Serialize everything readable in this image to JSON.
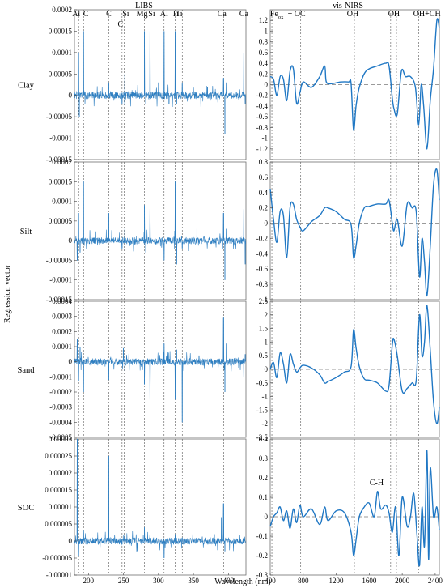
{
  "chart_data": {
    "type": "line",
    "column_titles": [
      "LIBS",
      "vis-NIRS"
    ],
    "xlabel": "Wavelength (nm)",
    "ylabel": "Regression vector",
    "rows": [
      "Clay",
      "Silt",
      "Sand",
      "SOC"
    ],
    "libs": {
      "xlim": [
        180,
        425
      ],
      "xticks": [
        200,
        250,
        300,
        350,
        400
      ],
      "element_lines": [
        {
          "label": "Al",
          "x": 186
        },
        {
          "label": "C",
          "x": 193
        },
        {
          "label": "C",
          "x": 229
        },
        {
          "label": "C",
          "x": 248
        },
        {
          "label": "Si",
          "x": 251
        },
        {
          "label": "Mg",
          "x": 280
        },
        {
          "label": "Si",
          "x": 288
        },
        {
          "label": "Al",
          "x": 308
        },
        {
          "label": "Ti",
          "x": 324
        },
        {
          "label": "Ti",
          "x": 334
        },
        {
          "label": "Ca",
          "x": 393
        },
        {
          "label": "Ca",
          "x": 422
        }
      ],
      "panels": [
        {
          "row": "Clay",
          "ylim": [
            -0.00015,
            0.0002
          ],
          "yticks": [
            -0.00015,
            -0.0001,
            -5e-05,
            0,
            5e-05,
            0.0001,
            0.00015,
            0.0002
          ],
          "ytick_labels": [
            "-0.00015",
            "-0.0001",
            "-0.00005",
            "0",
            "0.00005",
            "0.0001",
            "0.00015",
            "0.0002"
          ],
          "peaks": [
            [
              186,
              0.0001
            ],
            [
              187,
              -5e-05
            ],
            [
              193,
              0.00015
            ],
            [
              229,
              3e-05
            ],
            [
              248,
              -2e-05
            ],
            [
              252,
              5e-05
            ],
            [
              280,
              0.00015
            ],
            [
              282,
              -2e-05
            ],
            [
              288,
              0.00015
            ],
            [
              300,
              3e-05
            ],
            [
              308,
              0.00015
            ],
            [
              315,
              -2e-05
            ],
            [
              324,
              0.00015
            ],
            [
              326,
              -2e-05
            ],
            [
              334,
              3e-05
            ],
            [
              370,
              2e-05
            ],
            [
              393,
              4e-05
            ],
            [
              395,
              -9e-05
            ],
            [
              397,
              3e-05
            ],
            [
              422,
              0.0001
            ],
            [
              424,
              -2e-05
            ]
          ]
        },
        {
          "row": "Silt",
          "ylim": [
            -0.00015,
            0.0002
          ],
          "yticks": [
            -0.00015,
            -0.0001,
            -5e-05,
            0,
            5e-05,
            0.0001,
            0.00015,
            0.0002
          ],
          "ytick_labels": [
            "-0.00015",
            "-0.0001",
            "-0.00005",
            "0",
            "0.00005",
            "0.0001",
            "0.00015",
            "0.0002"
          ],
          "peaks": [
            [
              184,
              -5e-05
            ],
            [
              186,
              7e-05
            ],
            [
              188,
              -3e-05
            ],
            [
              193,
              0.00015
            ],
            [
              229,
              7e-05
            ],
            [
              248,
              -2e-05
            ],
            [
              252,
              3e-05
            ],
            [
              280,
              9e-05
            ],
            [
              282,
              -3e-05
            ],
            [
              288,
              8e-05
            ],
            [
              308,
              -5e-05
            ],
            [
              324,
              0.00015
            ],
            [
              326,
              -6e-05
            ],
            [
              334,
              -2e-05
            ],
            [
              355,
              3e-05
            ],
            [
              393,
              7e-05
            ],
            [
              395,
              -0.0001
            ],
            [
              397,
              3e-05
            ],
            [
              422,
              8e-05
            ],
            [
              424,
              -6e-05
            ]
          ]
        },
        {
          "row": "Sand",
          "ylim": [
            -0.0005,
            0.0004
          ],
          "yticks": [
            -0.0005,
            -0.0004,
            -0.0003,
            -0.0002,
            -0.0001,
            0,
            0.0001,
            0.0002,
            0.0003,
            0.0004
          ],
          "ytick_labels": [
            "-0.0005",
            "-0.0004",
            "-0.0003",
            "-0.0002",
            "-0.0001",
            "0",
            "0.0001",
            "0.0002",
            "0.0003",
            "0.0004"
          ],
          "peaks": [
            [
              184,
              0.00015
            ],
            [
              186,
              -0.00013
            ],
            [
              188,
              0.0001
            ],
            [
              193,
              -0.0002
            ],
            [
              229,
              -0.00012
            ],
            [
              250,
              9e-05
            ],
            [
              252,
              -6e-05
            ],
            [
              280,
              -0.00015
            ],
            [
              288,
              -0.00025
            ],
            [
              308,
              0.00012
            ],
            [
              324,
              -0.00025
            ],
            [
              326,
              8e-05
            ],
            [
              334,
              -0.0004
            ],
            [
              358,
              4e-05
            ],
            [
              393,
              0.00029
            ],
            [
              395,
              -0.0002
            ],
            [
              397,
              0.00012
            ],
            [
              422,
              -0.0001
            ],
            [
              424,
              5e-05
            ]
          ]
        },
        {
          "row": "SOC",
          "ylim": [
            -1e-05,
            3e-05
          ],
          "yticks": [
            -1e-05,
            -5e-06,
            0,
            5e-06,
            1e-05,
            1.5e-05,
            2e-05,
            2.5e-05,
            3e-05
          ],
          "ytick_labels": [
            "-0.00001",
            "-0.000005",
            "0",
            "0.000005",
            "0.00001",
            "0.000015",
            "0.00002",
            "0.000025",
            "0.00003"
          ],
          "peaks": [
            [
              184,
              3e-05
            ],
            [
              186,
              -4.5e-06
            ],
            [
              193,
              3e-06
            ],
            [
              229,
              2.5e-05
            ],
            [
              248,
              -1e-06
            ],
            [
              252,
              2e-06
            ],
            [
              280,
              4e-06
            ],
            [
              288,
              2e-06
            ],
            [
              308,
              -5e-06
            ],
            [
              324,
              2e-06
            ],
            [
              334,
              1e-06
            ],
            [
              380,
              2e-06
            ],
            [
              390,
              7e-06
            ],
            [
              393,
              1.1e-05
            ],
            [
              395,
              -3e-06
            ],
            [
              422,
              1e-06
            ]
          ]
        }
      ]
    },
    "nirs": {
      "xlim": [
        400,
        2450
      ],
      "xticks": [
        400,
        800,
        1200,
        1600,
        2000,
        2400
      ],
      "band_labels": [
        {
          "label": "Fe",
          "sub": "ox",
          "x": 480
        },
        {
          "label": "+ OC",
          "x": 720
        },
        {
          "label": "OH",
          "x": 1400
        },
        {
          "label": "OH",
          "x": 1900
        },
        {
          "label": "OH+CH",
          "x": 2300
        },
        {
          "label": "C-H",
          "x": 1690
        }
      ],
      "vlines": [
        420,
        770,
        1420,
        1860,
        1930,
        2200
      ],
      "panels": [
        {
          "row": "Clay",
          "ylim": [
            -1.4,
            1.4
          ],
          "yticks": [
            -1.2,
            -1,
            -0.8,
            -0.6,
            -0.4,
            -0.2,
            0,
            0.2,
            0.4,
            0.6,
            0.8,
            1,
            1.2
          ],
          "ytick_labels": [
            "-1.2",
            "-1",
            "-0.8",
            "-0.6",
            "-0.4",
            "-0.2",
            "0",
            "0.2",
            "0.4",
            "0.6",
            "0.8",
            "1",
            "1.2"
          ],
          "x": [
            400,
            440,
            480,
            520,
            560,
            600,
            640,
            680,
            720,
            760,
            800,
            900,
            1000,
            1060,
            1080,
            1150,
            1250,
            1350,
            1380,
            1410,
            1440,
            1480,
            1560,
            1700,
            1800,
            1840,
            1880,
            1900,
            1940,
            1990,
            2040,
            2100,
            2160,
            2200,
            2230,
            2260,
            2300,
            2340,
            2380,
            2420,
            2450
          ],
          "y": [
            0.15,
            0.1,
            -0.2,
            0.15,
            0.1,
            -0.3,
            0.25,
            0.3,
            -0.35,
            -0.15,
            0.05,
            -0.05,
            0.15,
            0.35,
            0.05,
            0.02,
            0.05,
            0.05,
            0.02,
            -0.85,
            -0.4,
            -0.05,
            0.25,
            0.35,
            0.4,
            0.35,
            -0.25,
            -0.45,
            -0.55,
            0.25,
            0.15,
            0.15,
            -0.05,
            -0.75,
            0.0,
            -0.4,
            -1.2,
            -0.3,
            0.3,
            1.2,
            1.05
          ]
        },
        {
          "row": "Silt",
          "ylim": [
            -1.0,
            0.8
          ],
          "yticks": [
            -1,
            -0.8,
            -0.6,
            -0.4,
            -0.2,
            0,
            0.2,
            0.4,
            0.6,
            0.8
          ],
          "ytick_labels": [
            "-1",
            "-0.8",
            "-0.6",
            "-0.4",
            "-0.2",
            "0",
            "0.2",
            "0.4",
            "0.6",
            "0.8"
          ],
          "x": [
            400,
            440,
            480,
            520,
            560,
            600,
            640,
            680,
            720,
            760,
            800,
            900,
            1000,
            1060,
            1100,
            1200,
            1300,
            1380,
            1410,
            1440,
            1480,
            1540,
            1600,
            1700,
            1800,
            1840,
            1880,
            1900,
            1940,
            2000,
            2060,
            2120,
            2170,
            2210,
            2240,
            2270,
            2300,
            2340,
            2380,
            2420,
            2450
          ],
          "y": [
            0.45,
            0.05,
            -0.25,
            0.15,
            0.1,
            -0.45,
            0.2,
            0.25,
            0.05,
            -0.05,
            -0.1,
            0.02,
            0.1,
            0.2,
            0.2,
            0.15,
            0.05,
            -0.02,
            -0.45,
            -0.3,
            0.0,
            0.2,
            0.22,
            0.25,
            0.25,
            0.3,
            0.0,
            -0.1,
            0.05,
            -0.3,
            0.25,
            0.2,
            0.15,
            -0.7,
            -0.2,
            -0.5,
            -0.95,
            -0.3,
            0.5,
            0.7,
            0.3
          ]
        },
        {
          "row": "Sand",
          "ylim": [
            -2.5,
            2.5
          ],
          "yticks": [
            -2.5,
            -2,
            -1.5,
            -1,
            -0.5,
            0,
            0.5,
            1,
            1.5,
            2,
            2.5
          ],
          "ytick_labels": [
            "-2.5",
            "-2",
            "-1.5",
            "-1",
            "-0.5",
            "0",
            "0.5",
            "1",
            "1.5",
            "2",
            "2.5"
          ],
          "x": [
            400,
            440,
            480,
            520,
            560,
            600,
            640,
            680,
            720,
            760,
            800,
            900,
            1000,
            1060,
            1100,
            1200,
            1300,
            1380,
            1410,
            1440,
            1480,
            1540,
            1600,
            1700,
            1800,
            1840,
            1880,
            1900,
            1940,
            2000,
            2060,
            2120,
            2170,
            2210,
            2240,
            2270,
            2300,
            2340,
            2380,
            2420,
            2450
          ],
          "y": [
            0.0,
            0.25,
            -0.3,
            0.6,
            0.2,
            -0.5,
            0.55,
            0.2,
            -0.1,
            0.05,
            0.15,
            0.05,
            -0.2,
            -0.5,
            -0.45,
            -0.3,
            -0.1,
            0.1,
            1.45,
            0.8,
            0.1,
            -0.35,
            -0.4,
            -0.5,
            -0.8,
            -0.6,
            0.9,
            1.1,
            0.5,
            -0.8,
            -0.7,
            -0.5,
            -0.4,
            2.0,
            0.5,
            1.0,
            2.35,
            0.7,
            -1.2,
            -2.0,
            -1.4
          ]
        },
        {
          "row": "SOC",
          "ylim": [
            -0.3,
            0.4
          ],
          "yticks": [
            -0.3,
            -0.2,
            -0.1,
            0,
            0.1,
            0.2,
            0.3,
            0.4
          ],
          "ytick_labels": [
            "-0.3",
            "-0.2",
            "-0.1",
            "0",
            "0.1",
            "0.2",
            "0.3",
            "0.4"
          ],
          "x": [
            400,
            440,
            480,
            520,
            560,
            600,
            640,
            680,
            720,
            760,
            800,
            900,
            1000,
            1060,
            1100,
            1200,
            1300,
            1380,
            1410,
            1440,
            1480,
            1540,
            1600,
            1660,
            1700,
            1740,
            1800,
            1840,
            1880,
            1920,
            1960,
            2000,
            2060,
            2100,
            2140,
            2180,
            2210,
            2240,
            2270,
            2300,
            2320,
            2340,
            2380,
            2420,
            2450
          ],
          "y": [
            -0.05,
            0.0,
            0.02,
            0.05,
            -0.02,
            0.03,
            -0.06,
            0.04,
            -0.03,
            0.06,
            0.0,
            0.04,
            -0.04,
            0.05,
            -0.02,
            0.03,
            0.02,
            -0.08,
            -0.2,
            -0.12,
            0.0,
            0.05,
            0.07,
            0.0,
            0.13,
            0.04,
            0.06,
            0.02,
            -0.08,
            0.05,
            -0.2,
            0.1,
            -0.05,
            0.0,
            0.12,
            -0.1,
            -0.25,
            0.05,
            -0.15,
            0.34,
            -0.22,
            0.25,
            0.0,
            0.05,
            -0.07
          ]
        }
      ]
    }
  }
}
